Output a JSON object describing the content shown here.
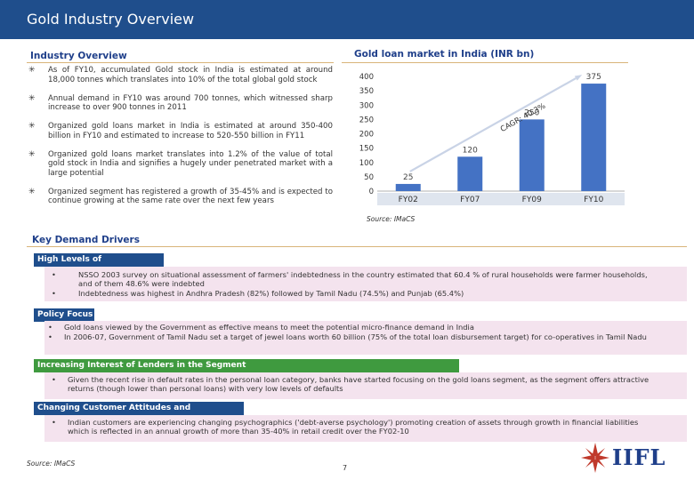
{
  "header": {
    "title": "Gold Industry Overview"
  },
  "industry": {
    "heading": "Industry Overview",
    "bullets": [
      "As of FY10, accumulated Gold stock in India is estimated at around 18,000 tonnes which translates into 10% of the total global gold stock",
      "Annual demand in FY10 was around 700 tonnes, which witnessed sharp increase to over 900 tonnes in 2011",
      "Organized gold loans market in India is estimated at around 350-400 billion in FY10 and estimated to increase to 520-550 billion in FY11",
      "Organized gold loans market translates into 1.2% of the value of total gold stock in India and signifies a hugely under penetrated market with a large potential",
      "Organized segment has registered a growth of 35-45% and is expected to continue growing at the same rate over the next few years"
    ]
  },
  "chart_data": {
    "type": "bar",
    "title": "Gold loan market in India (INR bn)",
    "categories": [
      "FY02",
      "FY07",
      "FY09",
      "FY10"
    ],
    "values": [
      25,
      120,
      250,
      375
    ],
    "ylim": [
      0,
      400
    ],
    "yticks": [
      0,
      50,
      100,
      150,
      200,
      250,
      300,
      350,
      400
    ],
    "annotation": "CAGR: 40.3%",
    "bar_color": "#4472c4",
    "grid": false
  },
  "chart_source": "Source: IMaCS",
  "drivers": {
    "heading": "Key Demand Drivers",
    "groups": [
      {
        "title": "High Levels of Indebtedness",
        "items": [
          "NSSO 2003 survey on situational assessment of farmers' indebtedness in the country estimated that 60.4 % of rural households were farmer households, and of them 48.6% were indebted",
          "Indebtedness was highest in Andhra Pradesh (82%) followed by Tamil Nadu (74.5%) and Punjab (65.4%)"
        ]
      },
      {
        "title": "Policy Focus",
        "items": [
          "Gold loans viewed by the Government as effective means to meet the potential micro-finance demand in India",
          "In 2006-07, Government of Tamil Nadu set a target of jewel loans worth 60 billion (75% of the total loan disbursement target) for co-operatives in Tamil Nadu"
        ]
      },
      {
        "title": "Increasing Interest of Lenders in the Segment",
        "items": [
          "Given the recent rise in default rates in the personal loan category, banks have started focusing on the gold loans segment, as the segment offers attractive returns (though lower than personal loans) with very low levels of defaults"
        ]
      },
      {
        "title": "Changing Customer Attitudes and Preferences",
        "items": [
          "Indian customers are experiencing changing psychographics ('debt-averse psychology') promoting creation of assets through growth in financial liabilities which is reflected in an annual growth of more than 35-40% in retail credit over the FY02-10"
        ]
      }
    ]
  },
  "footer": {
    "source": "Source: IMaCS",
    "page": "7",
    "logo_text": "IIFL"
  },
  "colors": {
    "header_bg": "#1f4e8c",
    "accent_green": "#3f9a3f",
    "band_pink": "#f4e3ee",
    "rule_gold": "#d9b57a"
  }
}
